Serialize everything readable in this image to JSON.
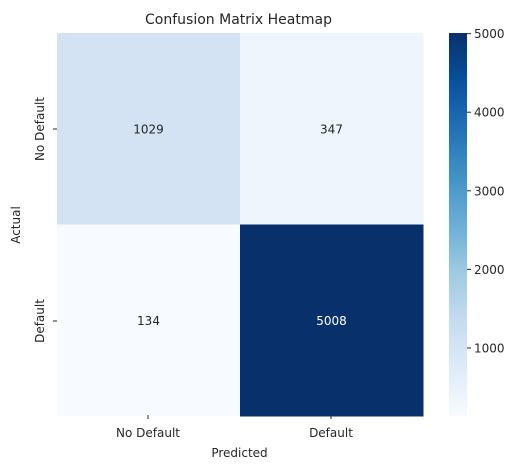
{
  "chart_data": {
    "type": "heatmap",
    "title": "Confusion Matrix Heatmap",
    "xlabel": "Predicted",
    "ylabel": "Actual",
    "x_categories": [
      "No Default",
      "Default"
    ],
    "y_categories": [
      "No Default",
      "Default"
    ],
    "values": [
      [
        1029,
        347
      ],
      [
        134,
        5008
      ]
    ],
    "colormap": "Blues",
    "color_scale": {
      "min": 134,
      "max": 5008,
      "ticks": [
        1000,
        2000,
        3000,
        4000,
        5000
      ],
      "tick_labels": [
        "1000",
        "2000",
        "3000",
        "4000",
        "5000"
      ]
    },
    "annotations": [
      "1029",
      "347",
      "134",
      "5008"
    ]
  }
}
